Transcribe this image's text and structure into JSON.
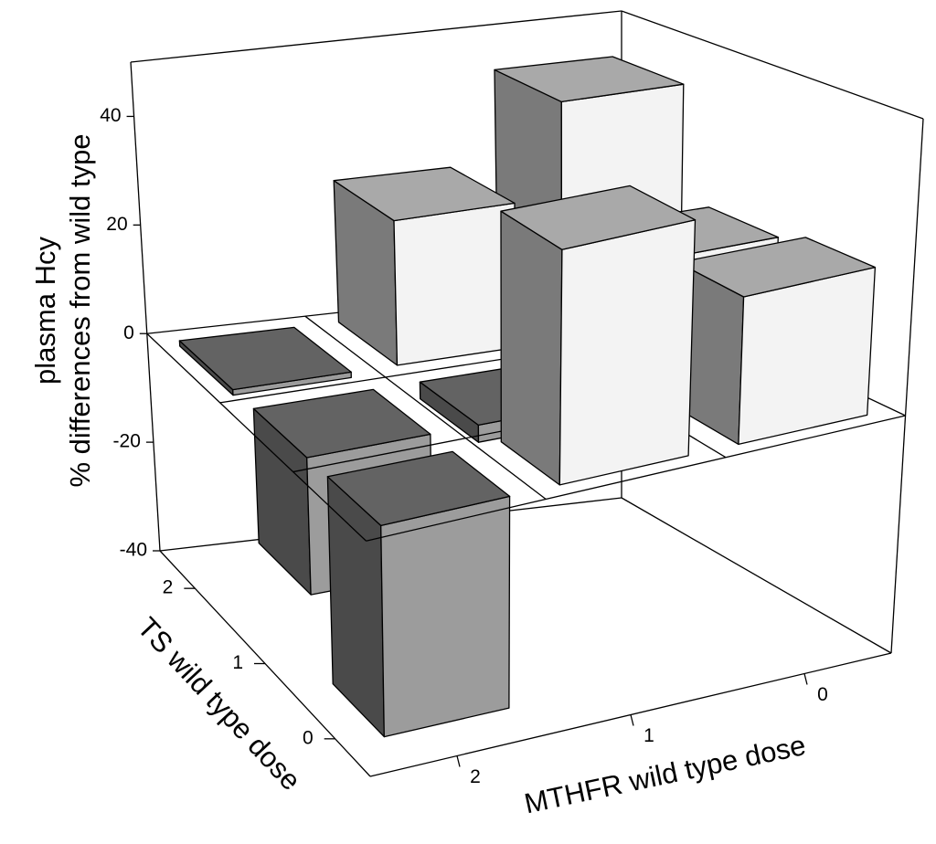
{
  "chart_data": {
    "type": "bar3d",
    "z_label": [
      "plasma Hcy",
      "% differences from wild type"
    ],
    "x_label": "MTHFR wild type dose",
    "y_label": "TS wild type dose",
    "x_categories": [
      "0",
      "1",
      "2"
    ],
    "y_categories": [
      "0",
      "1",
      "2"
    ],
    "values": [
      [
        25,
        40,
        -36
      ],
      [
        23,
        -3,
        -24
      ],
      [
        43,
        26,
        -1
      ]
    ],
    "zlim": [
      -40,
      50
    ],
    "zticks": [
      -40,
      -20,
      0,
      20,
      40
    ],
    "positive_colors": {
      "top": "#a9a9a9",
      "side": "#7a7a7a",
      "front": "#f3f3f3"
    },
    "negative_colors": {
      "top": "#636363",
      "side": "#4a4a4a",
      "front": "#9c9c9c"
    }
  }
}
